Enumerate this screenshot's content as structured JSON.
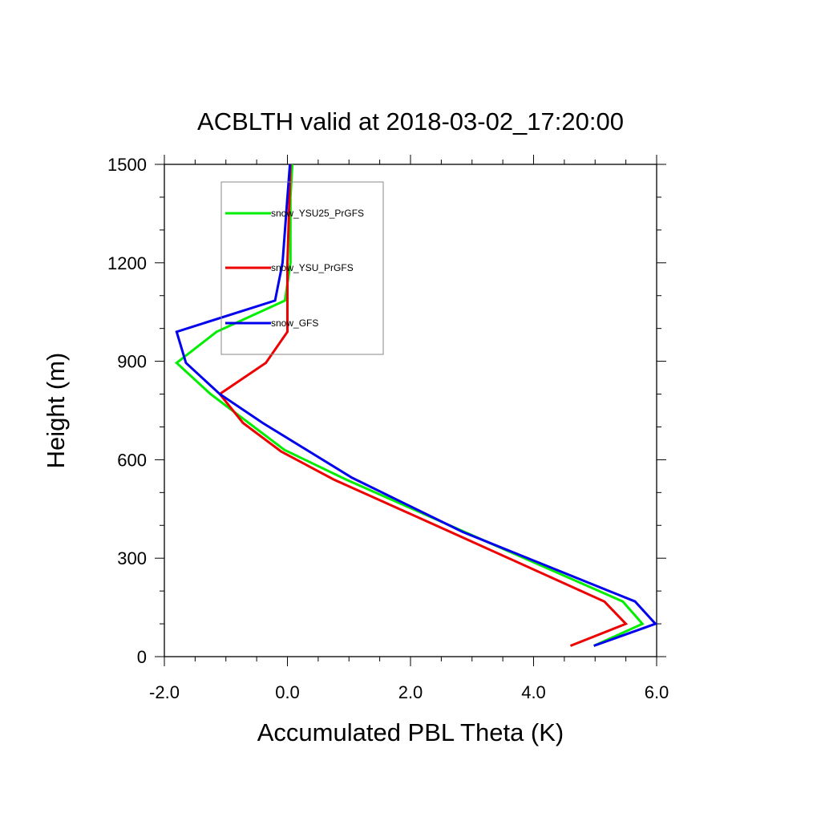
{
  "chart_data": {
    "type": "line",
    "title": "ACBLTH valid at 2018-03-02_17:20:00",
    "xlabel": "Accumulated PBL Theta (K)",
    "ylabel": "Height (m)",
    "xlim": [
      -2.0,
      6.0
    ],
    "ylim": [
      0,
      1500
    ],
    "xticks": [
      -2.0,
      0.0,
      2.0,
      4.0,
      6.0
    ],
    "xtick_labels": [
      "-2.0",
      "0.0",
      "2.0",
      "4.0",
      "6.0"
    ],
    "yticks": [
      0,
      300,
      600,
      900,
      1200,
      1500
    ],
    "ytick_labels": [
      "0",
      "300",
      "600",
      "900",
      "1200",
      "1500"
    ],
    "grid": false,
    "legend_position": "top-left inside plot",
    "series": [
      {
        "name": "snow_YSU25_PrGFS",
        "color": "#00ee00",
        "points": [
          [
            4.98,
            33
          ],
          [
            5.77,
            100
          ],
          [
            5.45,
            168
          ],
          [
            2.88,
            380
          ],
          [
            0.95,
            540
          ],
          [
            -0.05,
            630
          ],
          [
            -1.25,
            800
          ],
          [
            -1.8,
            895
          ],
          [
            -1.15,
            990
          ],
          [
            -0.04,
            1085
          ],
          [
            0.05,
            1200
          ],
          [
            0.05,
            1400
          ],
          [
            0.08,
            1500
          ]
        ]
      },
      {
        "name": "snow_YSU_PrGFS",
        "color": "#ee0000",
        "points": [
          [
            4.6,
            33
          ],
          [
            5.5,
            100
          ],
          [
            5.15,
            168
          ],
          [
            2.65,
            380
          ],
          [
            0.75,
            540
          ],
          [
            -0.1,
            625
          ],
          [
            -0.72,
            712
          ],
          [
            -1.1,
            800
          ],
          [
            -0.35,
            895
          ],
          [
            0.0,
            990
          ],
          [
            0.0,
            1085
          ],
          [
            0.0,
            1200
          ],
          [
            0.05,
            1500
          ]
        ]
      },
      {
        "name": "snow_GFS",
        "color": "#0000ee",
        "points": [
          [
            4.98,
            33
          ],
          [
            5.98,
            100
          ],
          [
            5.65,
            168
          ],
          [
            2.85,
            380
          ],
          [
            1.05,
            545
          ],
          [
            -0.4,
            712
          ],
          [
            -1.1,
            800
          ],
          [
            -1.65,
            895
          ],
          [
            -1.8,
            990
          ],
          [
            -0.2,
            1085
          ],
          [
            -0.08,
            1200
          ],
          [
            0.0,
            1400
          ],
          [
            0.04,
            1500
          ]
        ]
      }
    ]
  }
}
